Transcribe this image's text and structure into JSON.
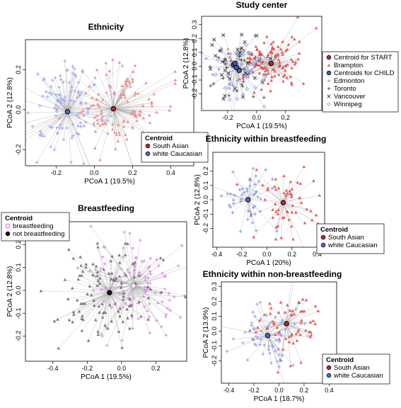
{
  "chart_data": [
    {
      "id": "ethnicity",
      "type": "scatter",
      "title": "Ethnicity",
      "xlabel": "PCoA 1 (19.5%)",
      "ylabel": "PCoA 2 (12.8%)",
      "xlim": [
        -0.36,
        0.52
      ],
      "ylim": [
        -0.28,
        0.35
      ],
      "xticks": [
        -0.2,
        0.0,
        0.2,
        0.4
      ],
      "xtick_labels": [
        "-0.2",
        "0.0",
        "0.2",
        "0.4"
      ],
      "yticks": [
        -0.2,
        0.0,
        0.2
      ],
      "ytick_labels": [
        "-0.2",
        "0.0",
        "0.2"
      ],
      "legend": {
        "title": "Centroid",
        "entries": [
          {
            "label": "South Asian",
            "color": "#c0272d"
          },
          {
            "label": "white Caucasian",
            "color": "#4a6fd0"
          }
        ],
        "placement": "bottom-right"
      },
      "series": [
        {
          "name": "South Asian",
          "color": "#f08a8a",
          "marker": "triangle",
          "n": 120,
          "centroid": [
            0.1,
            0.005
          ],
          "spread": [
            0.13,
            0.11
          ]
        },
        {
          "name": "white Caucasian",
          "color": "#9aa8ef",
          "marker": "cross",
          "n": 110,
          "centroid": [
            -0.14,
            -0.01
          ],
          "spread": [
            0.11,
            0.12
          ]
        }
      ]
    },
    {
      "id": "study_center",
      "type": "scatter",
      "title": "Study center",
      "xlabel": "PCoA 1 (19.5%)",
      "ylabel": "PCoA 2 (12.8%)",
      "xlim": [
        -0.38,
        0.45
      ],
      "ylim": [
        -0.32,
        0.36
      ],
      "xticks": [
        -0.2,
        0.0,
        0.2
      ],
      "xtick_labels": [
        "-0.2",
        "0.0",
        "0.2"
      ],
      "yticks": [
        -0.2,
        -0.1,
        0.0,
        0.1,
        0.2,
        0.3
      ],
      "ytick_labels": [
        "-0.2",
        "-0.1",
        "0.0",
        "0.1",
        "0.2",
        "0.3"
      ],
      "legend": {
        "entries": [
          {
            "label": "Centroid for START",
            "color": "#c0272d",
            "kind": "centroid"
          },
          {
            "label": "Brampton",
            "color": "#e74c4c",
            "kind": "point"
          },
          {
            "label": "Centroids for CHILD",
            "color": "#3d5fb8",
            "kind": "centroid"
          },
          {
            "label": "Edmonton",
            "color": "#8896d8",
            "kind": "point"
          },
          {
            "label": "Toronto",
            "color": "#555555",
            "kind": "point"
          },
          {
            "label": "Vancouver",
            "color": "#333333",
            "kind": "point"
          },
          {
            "label": "Winnipeg",
            "color": "#8fa6f0",
            "kind": "point"
          }
        ],
        "placement": "right"
      },
      "series": [
        {
          "name": "Brampton",
          "color": "#e74c4c",
          "marker": "triangle",
          "n": 115,
          "centroid": [
            0.1,
            0.02
          ],
          "spread": [
            0.12,
            0.09
          ]
        },
        {
          "name": "Edmonton",
          "color": "#8896d8",
          "marker": "cross",
          "n": 30,
          "centroid": [
            -0.16,
            0.01
          ],
          "spread": [
            0.1,
            0.11
          ]
        },
        {
          "name": "Toronto",
          "color": "#555555",
          "marker": "cross",
          "n": 30,
          "centroid": [
            -0.14,
            -0.01
          ],
          "spread": [
            0.1,
            0.11
          ]
        },
        {
          "name": "Vancouver",
          "color": "#333333",
          "marker": "x",
          "n": 30,
          "centroid": [
            -0.15,
            0.02
          ],
          "spread": [
            0.1,
            0.11
          ]
        },
        {
          "name": "Winnipeg",
          "color": "#8fa6f0",
          "marker": "diamond",
          "n": 30,
          "centroid": [
            -0.12,
            -0.03
          ],
          "spread": [
            0.1,
            0.11
          ]
        }
      ]
    },
    {
      "id": "ethnicity_bf",
      "type": "scatter",
      "title": "Ethnicity within breastfeeding",
      "xlabel": "PCoA 1 (20%)",
      "ylabel": "PCoA 2 (12.8%)",
      "xlim": [
        -0.43,
        0.46
      ],
      "ylim": [
        -0.33,
        0.33
      ],
      "xticks": [
        -0.4,
        -0.2,
        0.0,
        0.2,
        0.4
      ],
      "xtick_labels": [
        "-0.4",
        "-0.2",
        "0.0",
        "0.2",
        "0.4"
      ],
      "yticks": [
        -0.2,
        -0.1,
        0.0,
        0.1,
        0.2
      ],
      "ytick_labels": [
        "-0.2",
        "-0.1",
        "0.0",
        "0.1",
        "0.2"
      ],
      "legend": {
        "title": "Centroid",
        "entries": [
          {
            "label": "South Asian",
            "color": "#c0272d"
          },
          {
            "label": "white Caucasian",
            "color": "#4a6fd0"
          }
        ],
        "placement": "bottom-right"
      },
      "series": [
        {
          "name": "South Asian",
          "color": "#e74c4c",
          "marker": "triangle",
          "n": 60,
          "centroid": [
            0.13,
            -0.02
          ],
          "spread": [
            0.13,
            0.11
          ]
        },
        {
          "name": "white Caucasian",
          "color": "#7f96e6",
          "marker": "cross",
          "n": 45,
          "centroid": [
            -0.15,
            0.0
          ],
          "spread": [
            0.11,
            0.1
          ]
        }
      ]
    },
    {
      "id": "breastfeeding",
      "type": "scatter",
      "title": "Breastfeeding",
      "xlabel": "PCoA 1 (19.5%)",
      "ylabel": "PCoA 2 (12.8%)",
      "xlim": [
        -0.56,
        0.38
      ],
      "ylim": [
        -0.31,
        0.3
      ],
      "xticks": [
        -0.4,
        -0.2,
        0.0,
        0.2
      ],
      "xtick_labels": [
        "-0.4",
        "-0.2",
        "0.0",
        "0.2"
      ],
      "yticks": [
        -0.2,
        -0.1,
        0.0,
        0.1,
        0.2
      ],
      "ytick_labels": [
        "-0.2",
        "-0.1",
        "0.0",
        "0.1",
        "0.2"
      ],
      "legend": {
        "title": "Centroid",
        "entries": [
          {
            "label": "breastfeeding",
            "color": "#d07ad6",
            "kind": "open"
          },
          {
            "label": "not breastfeeding",
            "color": "#111111",
            "kind": "filled"
          }
        ],
        "placement": "top-left"
      },
      "series": [
        {
          "name": "breastfeeding",
          "color": "#d78ce0",
          "marker": "cross",
          "n": 110,
          "centroid": [
            0.07,
            0.02
          ],
          "spread": [
            0.14,
            0.11
          ]
        },
        {
          "name": "not breastfeeding",
          "color": "#6e6e6e",
          "marker": "triangle",
          "n": 110,
          "centroid": [
            -0.07,
            -0.01
          ],
          "spread": [
            0.16,
            0.11
          ]
        }
      ]
    },
    {
      "id": "ethnicity_nbf",
      "type": "scatter",
      "title": "Ethnicity within non-breastfeeding",
      "xlabel": "PCoA 1 (18.7%)",
      "ylabel": "PCoA 2 (13.9%)",
      "xlim": [
        -0.46,
        0.46
      ],
      "ylim": [
        -0.35,
        0.33
      ],
      "xticks": [
        -0.4,
        -0.2,
        0.0,
        0.2,
        0.4
      ],
      "xtick_labels": [
        "-0.4",
        "-0.2",
        "0.0",
        "0.2",
        "0.4"
      ],
      "yticks": [
        -0.2,
        -0.1,
        0.0,
        0.1,
        0.2,
        0.3
      ],
      "ytick_labels": [
        "-0.2",
        "-0.1",
        "0.0",
        "0.1",
        "0.2",
        "0.3"
      ],
      "legend": {
        "title": "Centroid",
        "entries": [
          {
            "label": "South Asian",
            "color": "#c0272d"
          },
          {
            "label": "white Caucasian",
            "color": "#4a6fd0"
          }
        ],
        "placement": "bottom-right"
      },
      "series": [
        {
          "name": "South Asian",
          "color": "#e74c4c",
          "marker": "triangle",
          "n": 65,
          "centroid": [
            0.06,
            0.05
          ],
          "spread": [
            0.14,
            0.12
          ]
        },
        {
          "name": "white Caucasian",
          "color": "#8fa2ee",
          "marker": "cross",
          "n": 60,
          "centroid": [
            -0.09,
            -0.03
          ],
          "spread": [
            0.13,
            0.11
          ]
        }
      ]
    }
  ]
}
